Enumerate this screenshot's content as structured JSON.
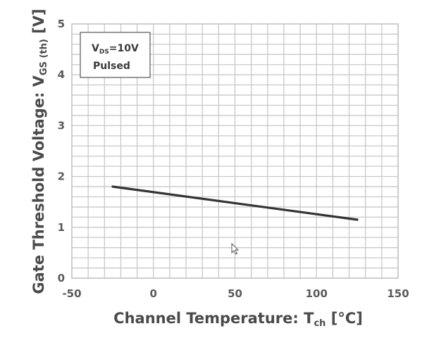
{
  "chart_data": {
    "type": "line",
    "xlabel": {
      "main": "Channel Temperature: T",
      "sub": "ch",
      "unit": " [°C]"
    },
    "ylabel": {
      "main": "Gate Threshold Voltage: V",
      "sub": "GS (th)",
      "unit": " [V]"
    },
    "xlim": [
      -50,
      150
    ],
    "ylim": [
      0,
      5
    ],
    "xticks": [
      -50,
      0,
      50,
      100,
      150
    ],
    "yticks": [
      0,
      1,
      2,
      3,
      4,
      5
    ],
    "xtick_labels": [
      "-50",
      "0",
      "50",
      "100",
      "150"
    ],
    "ytick_labels": [
      "0",
      "1",
      "2",
      "3",
      "4",
      "5"
    ],
    "grid": true,
    "annotation": {
      "line1_main": "V",
      "line1_sub": "DS",
      "line1_rest": "=10V",
      "line2": "Pulsed",
      "placement": "top-left"
    },
    "series": [
      {
        "color": "#333333",
        "x": [
          -25,
          125
        ],
        "y": [
          1.8,
          1.15
        ]
      }
    ]
  }
}
